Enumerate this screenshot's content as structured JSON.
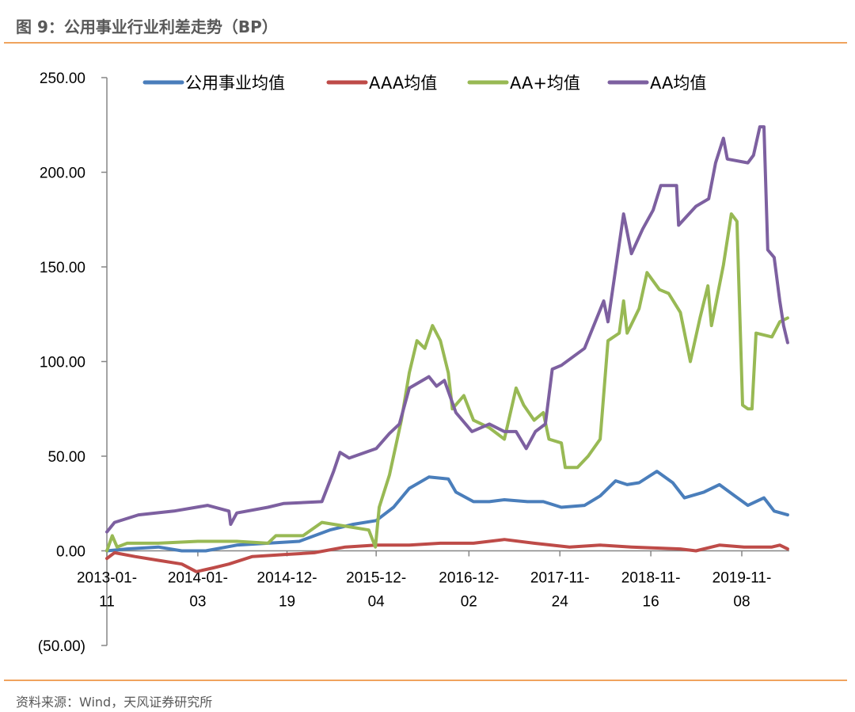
{
  "title": "图 9：公用事业行业利差走势（BP）",
  "source": "资料来源：Wind，天风证券研究所",
  "chart_data": {
    "type": "line",
    "title": "",
    "xlabel": "",
    "ylabel": "",
    "ylim": [
      -50,
      250
    ],
    "y_ticks": [
      250,
      200,
      150,
      100,
      50,
      0,
      -50
    ],
    "y_tick_labels": [
      "250.00",
      "200.00",
      "150.00",
      "100.00",
      "50.00",
      "0.00",
      "(50.00)"
    ],
    "negative_label_color": "#e00000",
    "x_ticks": [
      "2013-01-11",
      "2014-01-03",
      "2014-12-19",
      "2015-12-04",
      "2016-12-02",
      "2017-11-24",
      "2018-11-16",
      "2019-11-08"
    ],
    "x_tick_labels": [
      [
        "2013-01-",
        "11"
      ],
      [
        "2014-01-",
        "03"
      ],
      [
        "2014-12-",
        "19"
      ],
      [
        "2015-12-",
        "04"
      ],
      [
        "2016-12-",
        "02"
      ],
      [
        "2017-11-",
        "24"
      ],
      [
        "2018-11-",
        "16"
      ],
      [
        "2019-11-",
        "08"
      ]
    ],
    "grid": false,
    "legend_position": "top",
    "series": [
      {
        "name": "公用事业均值",
        "color": "#4a7ebb",
        "points": [
          [
            "2013-01-11",
            0
          ],
          [
            "2013-04-01",
            1
          ],
          [
            "2013-08-01",
            2
          ],
          [
            "2013-11-01",
            0
          ],
          [
            "2014-02-03",
            0
          ],
          [
            "2014-06-05",
            3
          ],
          [
            "2014-10-05",
            4
          ],
          [
            "2015-02-05",
            5
          ],
          [
            "2015-06-05",
            11
          ],
          [
            "2015-09-05",
            14
          ],
          [
            "2015-12-04",
            16
          ],
          [
            "2016-02-10",
            23
          ],
          [
            "2016-04-12",
            33
          ],
          [
            "2016-06-28",
            39
          ],
          [
            "2016-09-12",
            38
          ],
          [
            "2016-10-12",
            31
          ],
          [
            "2016-12-20",
            26
          ],
          [
            "2017-02-20",
            26
          ],
          [
            "2017-04-20",
            27
          ],
          [
            "2017-07-20",
            26
          ],
          [
            "2017-09-20",
            26
          ],
          [
            "2017-11-30",
            23
          ],
          [
            "2018-03-01",
            24
          ],
          [
            "2018-05-01",
            29
          ],
          [
            "2018-07-01",
            37
          ],
          [
            "2018-08-15",
            35
          ],
          [
            "2018-10-01",
            36
          ],
          [
            "2018-12-10",
            42
          ],
          [
            "2019-02-10",
            36
          ],
          [
            "2019-03-28",
            28
          ],
          [
            "2019-06-12",
            31
          ],
          [
            "2019-08-12",
            35
          ],
          [
            "2019-10-12",
            29
          ],
          [
            "2019-12-02",
            24
          ],
          [
            "2020-02-03",
            28
          ],
          [
            "2020-03-14",
            21
          ],
          [
            "2020-05-06",
            19
          ]
        ]
      },
      {
        "name": "AAA均值",
        "color": "#be4b48",
        "points": [
          [
            "2013-01-11",
            -4
          ],
          [
            "2013-02-10",
            -1
          ],
          [
            "2013-05-01",
            -3
          ],
          [
            "2013-08-01",
            -5
          ],
          [
            "2013-11-01",
            -7
          ],
          [
            "2013-12-28",
            -11
          ],
          [
            "2014-03-05",
            -9
          ],
          [
            "2014-05-05",
            -7
          ],
          [
            "2014-08-05",
            -3
          ],
          [
            "2014-12-05",
            -2
          ],
          [
            "2015-04-05",
            -1
          ],
          [
            "2015-08-05",
            2
          ],
          [
            "2015-12-04",
            3
          ],
          [
            "2016-04-12",
            3
          ],
          [
            "2016-08-12",
            4
          ],
          [
            "2016-12-20",
            4
          ],
          [
            "2017-04-20",
            6
          ],
          [
            "2017-08-15",
            4
          ],
          [
            "2018-01-01",
            2
          ],
          [
            "2018-05-01",
            3
          ],
          [
            "2018-09-01",
            2
          ],
          [
            "2019-03-12",
            1
          ],
          [
            "2019-05-12",
            0
          ],
          [
            "2019-08-12",
            3
          ],
          [
            "2019-11-17",
            2
          ],
          [
            "2020-03-05",
            2
          ],
          [
            "2020-04-05",
            3
          ],
          [
            "2020-05-06",
            1
          ]
        ]
      },
      {
        "name": "AA+均值",
        "color": "#98b954",
        "points": [
          [
            "2013-01-11",
            0
          ],
          [
            "2013-02-01",
            8
          ],
          [
            "2013-02-20",
            2
          ],
          [
            "2013-04-01",
            4
          ],
          [
            "2013-08-01",
            4
          ],
          [
            "2014-01-03",
            5
          ],
          [
            "2014-06-05",
            5
          ],
          [
            "2014-10-05",
            4
          ],
          [
            "2014-11-05",
            8
          ],
          [
            "2015-02-20",
            8
          ],
          [
            "2015-05-05",
            15
          ],
          [
            "2015-08-05",
            13
          ],
          [
            "2015-11-05",
            11
          ],
          [
            "2015-12-01",
            2
          ],
          [
            "2015-12-16",
            23
          ],
          [
            "2016-01-25",
            40
          ],
          [
            "2016-03-12",
            69
          ],
          [
            "2016-04-12",
            94
          ],
          [
            "2016-05-12",
            111
          ],
          [
            "2016-06-12",
            107
          ],
          [
            "2016-07-12",
            119
          ],
          [
            "2016-08-12",
            111
          ],
          [
            "2016-09-12",
            94
          ],
          [
            "2016-09-28",
            75
          ],
          [
            "2016-11-12",
            82
          ],
          [
            "2016-12-20",
            69
          ],
          [
            "2017-02-20",
            65
          ],
          [
            "2017-04-20",
            59
          ],
          [
            "2017-06-05",
            86
          ],
          [
            "2017-07-05",
            77
          ],
          [
            "2017-08-15",
            69
          ],
          [
            "2017-09-20",
            73
          ],
          [
            "2017-10-12",
            59
          ],
          [
            "2017-11-30",
            57
          ],
          [
            "2017-12-15",
            44
          ],
          [
            "2018-02-01",
            44
          ],
          [
            "2018-03-15",
            50
          ],
          [
            "2018-05-01",
            59
          ],
          [
            "2018-06-01",
            111
          ],
          [
            "2018-07-15",
            115
          ],
          [
            "2018-08-01",
            132
          ],
          [
            "2018-08-15",
            115
          ],
          [
            "2018-10-01",
            128
          ],
          [
            "2018-11-01",
            147
          ],
          [
            "2018-12-20",
            138
          ],
          [
            "2019-01-25",
            136
          ],
          [
            "2019-03-12",
            126
          ],
          [
            "2019-04-20",
            100
          ],
          [
            "2019-05-28",
            123
          ],
          [
            "2019-06-28",
            140
          ],
          [
            "2019-07-12",
            119
          ],
          [
            "2019-08-28",
            151
          ],
          [
            "2019-09-28",
            178
          ],
          [
            "2019-10-20",
            174
          ],
          [
            "2019-11-11",
            77
          ],
          [
            "2019-12-02",
            75
          ],
          [
            "2019-12-18",
            75
          ],
          [
            "2020-01-03",
            115
          ],
          [
            "2020-03-05",
            113
          ],
          [
            "2020-04-05",
            121
          ],
          [
            "2020-05-06",
            123
          ]
        ]
      },
      {
        "name": "AA均值",
        "color": "#7d60a0",
        "points": [
          [
            "2013-01-11",
            10
          ],
          [
            "2013-02-10",
            15
          ],
          [
            "2013-05-15",
            19
          ],
          [
            "2013-10-01",
            21
          ],
          [
            "2014-02-10",
            24
          ],
          [
            "2014-05-05",
            21
          ],
          [
            "2014-05-12",
            14
          ],
          [
            "2014-06-05",
            20
          ],
          [
            "2014-10-05",
            23
          ],
          [
            "2014-12-05",
            25
          ],
          [
            "2015-05-05",
            26
          ],
          [
            "2015-06-20",
            42
          ],
          [
            "2015-07-15",
            52
          ],
          [
            "2015-08-20",
            49
          ],
          [
            "2015-12-04",
            54
          ],
          [
            "2016-01-25",
            62
          ],
          [
            "2016-03-04",
            67
          ],
          [
            "2016-04-12",
            86
          ],
          [
            "2016-06-28",
            92
          ],
          [
            "2016-07-28",
            87
          ],
          [
            "2016-08-28",
            90
          ],
          [
            "2016-10-12",
            73
          ],
          [
            "2016-12-14",
            63
          ],
          [
            "2017-02-20",
            67
          ],
          [
            "2017-04-20",
            63
          ],
          [
            "2017-06-05",
            63
          ],
          [
            "2017-07-15",
            54
          ],
          [
            "2017-08-20",
            63
          ],
          [
            "2017-09-28",
            67
          ],
          [
            "2017-10-25",
            96
          ],
          [
            "2017-11-30",
            98
          ],
          [
            "2018-03-01",
            107
          ],
          [
            "2018-05-15",
            132
          ],
          [
            "2018-06-01",
            121
          ],
          [
            "2018-08-01",
            178
          ],
          [
            "2018-09-01",
            157
          ],
          [
            "2018-10-15",
            170
          ],
          [
            "2018-11-25",
            180
          ],
          [
            "2018-12-25",
            193
          ],
          [
            "2019-02-25",
            193
          ],
          [
            "2019-03-05",
            172
          ],
          [
            "2019-05-12",
            182
          ],
          [
            "2019-07-01",
            186
          ],
          [
            "2019-07-28",
            205
          ],
          [
            "2019-08-28",
            218
          ],
          [
            "2019-09-12",
            207
          ],
          [
            "2019-12-02",
            205
          ],
          [
            "2019-12-24",
            209
          ],
          [
            "2020-01-18",
            224
          ],
          [
            "2020-02-03",
            224
          ],
          [
            "2020-02-18",
            159
          ],
          [
            "2020-03-14",
            155
          ],
          [
            "2020-04-05",
            132
          ],
          [
            "2020-04-20",
            119
          ],
          [
            "2020-05-06",
            110
          ]
        ]
      }
    ]
  }
}
